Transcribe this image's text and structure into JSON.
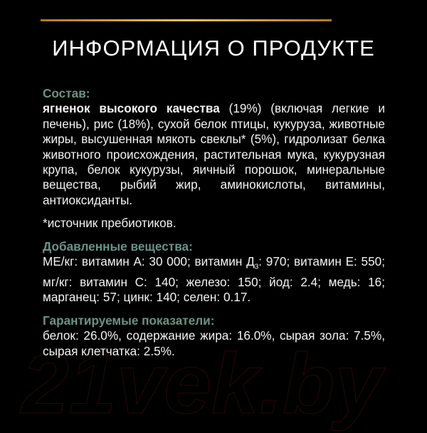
{
  "title": "ИНФОРМАЦИЯ О ПРОДУКТЕ",
  "composition": {
    "heading": "Состав:",
    "bold_lead": "ягненок высокого качества",
    "text": " (19%) (включая легкие и печень), рис (18%), сухой белок птицы, кукуруза, животные жиры, высушенная мякоть свеклы* (5%), гидролизат белка животного происхождения, растительная мука, кукурузная крупа, белок кукурузы, яичный порошок, минеральные вещества, рыбий жир, аминокислоты, витамины, антиоксиданты.",
    "footnote": "*источник пребиотиков."
  },
  "additives": {
    "heading": "Добавленные вещества:",
    "text_a": "МЕ/кг: витамин А: 30 000; витамин Д",
    "sub": "3",
    "text_b": ": 970; витамин Е: 550;  мг/кг: витамин С: 140; железо: 150; йод: 2.4; медь: 16; марганец: 57; цинк: 140; селен: 0.17."
  },
  "guaranteed": {
    "heading": "Гарантируемые показатели:",
    "text": "белок: 26.0%, содержание жира: 16.0%, сырая зола: 7.5%, сырая клетчатка: 2.5%."
  },
  "watermark": "21vek.by",
  "colors": {
    "background": "#000000",
    "heading": "#6a9388",
    "accent_line": "#e0b04a"
  }
}
